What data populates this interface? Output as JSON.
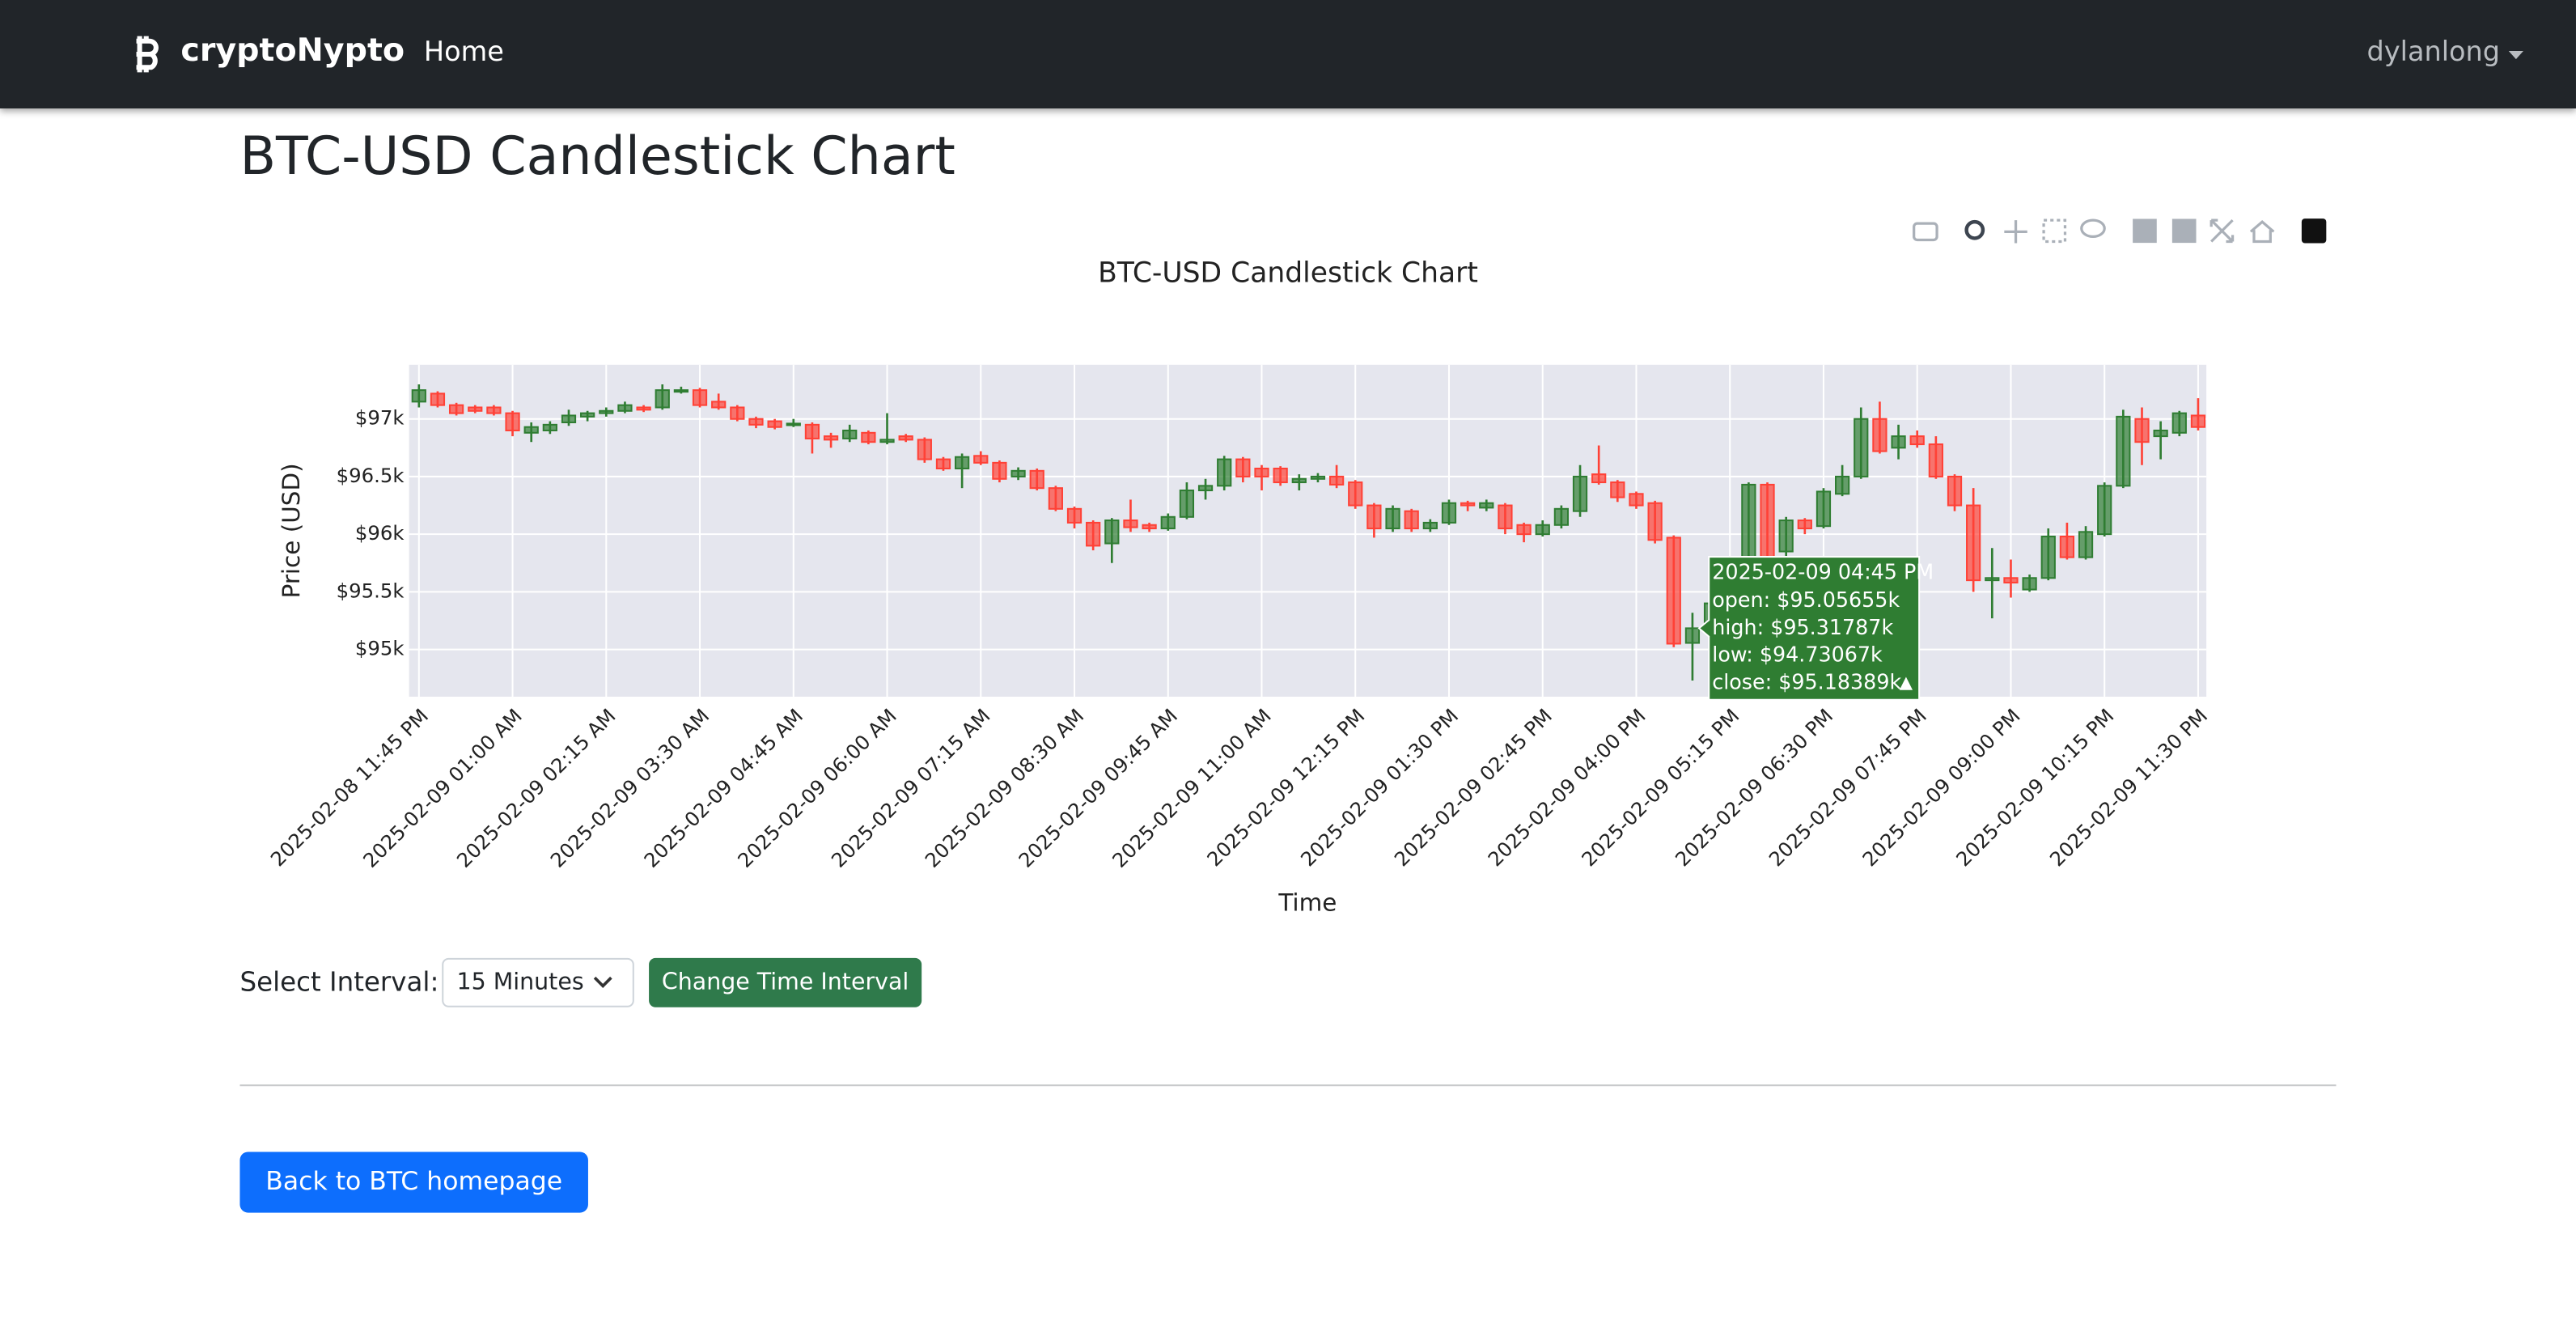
{
  "navbar": {
    "brand": "cryptoNypto",
    "links": [
      "Home"
    ],
    "user": "dylanlong"
  },
  "heading": "BTC-USD Candlestick Chart",
  "chart_data": {
    "type": "candlestick",
    "title": "BTC-USD Candlestick Chart",
    "xlabel": "Time",
    "ylabel": "Price (USD)",
    "x": [
      "2025-02-08 11:45 PM",
      "2025-02-09 12:00 AM",
      "2025-02-09 12:15 AM",
      "2025-02-09 12:30 AM",
      "2025-02-09 12:45 AM",
      "2025-02-09 01:00 AM",
      "2025-02-09 01:15 AM",
      "2025-02-09 01:30 AM",
      "2025-02-09 01:45 AM",
      "2025-02-09 02:00 AM",
      "2025-02-09 02:15 AM",
      "2025-02-09 02:30 AM",
      "2025-02-09 02:45 AM",
      "2025-02-09 03:00 AM",
      "2025-02-09 03:15 AM",
      "2025-02-09 03:30 AM",
      "2025-02-09 03:45 AM",
      "2025-02-09 04:00 AM",
      "2025-02-09 04:15 AM",
      "2025-02-09 04:30 AM",
      "2025-02-09 04:45 AM",
      "2025-02-09 05:00 AM",
      "2025-02-09 05:15 AM",
      "2025-02-09 05:30 AM",
      "2025-02-09 05:45 AM",
      "2025-02-09 06:00 AM",
      "2025-02-09 06:15 AM",
      "2025-02-09 06:30 AM",
      "2025-02-09 06:45 AM",
      "2025-02-09 07:00 AM",
      "2025-02-09 07:15 AM",
      "2025-02-09 07:30 AM",
      "2025-02-09 07:45 AM",
      "2025-02-09 08:00 AM",
      "2025-02-09 08:15 AM",
      "2025-02-09 08:30 AM",
      "2025-02-09 08:45 AM",
      "2025-02-09 09:00 AM",
      "2025-02-09 09:15 AM",
      "2025-02-09 09:30 AM",
      "2025-02-09 09:45 AM",
      "2025-02-09 10:00 AM",
      "2025-02-09 10:15 AM",
      "2025-02-09 10:30 AM",
      "2025-02-09 10:45 AM",
      "2025-02-09 11:00 AM",
      "2025-02-09 11:15 AM",
      "2025-02-09 11:30 AM",
      "2025-02-09 11:45 AM",
      "2025-02-09 12:00 PM",
      "2025-02-09 12:15 PM",
      "2025-02-09 12:30 PM",
      "2025-02-09 12:45 PM",
      "2025-02-09 01:00 PM",
      "2025-02-09 01:15 PM",
      "2025-02-09 01:30 PM",
      "2025-02-09 01:45 PM",
      "2025-02-09 02:00 PM",
      "2025-02-09 02:15 PM",
      "2025-02-09 02:30 PM",
      "2025-02-09 02:45 PM",
      "2025-02-09 03:00 PM",
      "2025-02-09 03:15 PM",
      "2025-02-09 03:30 PM",
      "2025-02-09 03:45 PM",
      "2025-02-09 04:00 PM",
      "2025-02-09 04:15 PM",
      "2025-02-09 04:30 PM",
      "2025-02-09 04:45 PM",
      "2025-02-09 05:00 PM",
      "2025-02-09 05:15 PM",
      "2025-02-09 05:30 PM",
      "2025-02-09 05:45 PM",
      "2025-02-09 06:00 PM",
      "2025-02-09 06:15 PM",
      "2025-02-09 06:30 PM",
      "2025-02-09 06:45 PM",
      "2025-02-09 07:00 PM",
      "2025-02-09 07:15 PM",
      "2025-02-09 07:30 PM",
      "2025-02-09 07:45 PM",
      "2025-02-09 08:00 PM",
      "2025-02-09 08:15 PM",
      "2025-02-09 08:30 PM",
      "2025-02-09 08:45 PM",
      "2025-02-09 09:00 PM",
      "2025-02-09 09:15 PM",
      "2025-02-09 09:30 PM",
      "2025-02-09 09:45 PM",
      "2025-02-09 10:00 PM",
      "2025-02-09 10:15 PM",
      "2025-02-09 10:30 PM",
      "2025-02-09 10:45 PM",
      "2025-02-09 11:00 PM",
      "2025-02-09 11:15 PM",
      "2025-02-09 11:30 PM"
    ],
    "open": [
      97150,
      97220,
      97120,
      97100,
      97100,
      97050,
      96880,
      96900,
      96970,
      97020,
      97050,
      97070,
      97100,
      97100,
      97240,
      97250,
      97150,
      97100,
      97000,
      96980,
      96950,
      96950,
      96850,
      96830,
      96880,
      96800,
      96850,
      96820,
      96650,
      96570,
      96680,
      96620,
      96500,
      96550,
      96400,
      96220,
      96100,
      95920,
      96120,
      96080,
      96050,
      96150,
      96380,
      96420,
      96650,
      96570,
      96570,
      96450,
      96480,
      96500,
      96450,
      96250,
      96050,
      96200,
      96050,
      96100,
      96270,
      96230,
      96250,
      96080,
      96000,
      96080,
      96200,
      96520,
      96450,
      96350,
      96270,
      95970,
      95056.55,
      95180,
      95400,
      95720,
      96430,
      95850,
      96120,
      96070,
      96350,
      96500,
      97000,
      96750,
      96850,
      96780,
      96500,
      96250,
      95600,
      95620,
      95520,
      95620,
      95980,
      95800,
      96000,
      96420,
      97000,
      96850,
      96880,
      97030
    ],
    "high": [
      97300,
      97240,
      97140,
      97120,
      97120,
      97070,
      96970,
      96980,
      97080,
      97070,
      97100,
      97150,
      97120,
      97300,
      97280,
      97270,
      97220,
      97120,
      97020,
      97000,
      97000,
      96970,
      96880,
      96950,
      96900,
      97050,
      96870,
      96840,
      96670,
      96700,
      96720,
      96640,
      96580,
      96570,
      96420,
      96240,
      96120,
      96140,
      96300,
      96100,
      96180,
      96450,
      96480,
      96680,
      96670,
      96600,
      96590,
      96520,
      96530,
      96600,
      96470,
      96270,
      96250,
      96220,
      96130,
      96300,
      96290,
      96300,
      96270,
      96100,
      96120,
      96250,
      96600,
      96770,
      96470,
      96370,
      96290,
      95990,
      95317.87,
      95450,
      95750,
      96450,
      96450,
      96150,
      96140,
      96400,
      96600,
      97100,
      97150,
      96950,
      96900,
      96850,
      96520,
      96400,
      95880,
      95780,
      95650,
      96050,
      96100,
      96070,
      96450,
      97080,
      97100,
      96980,
      97070,
      97180
    ],
    "low": [
      97100,
      97100,
      97030,
      97050,
      97030,
      96850,
      96800,
      96870,
      96940,
      96980,
      97020,
      97050,
      97060,
      97080,
      97220,
      97100,
      97080,
      96980,
      96920,
      96910,
      96930,
      96700,
      96750,
      96800,
      96780,
      96780,
      96800,
      96620,
      96550,
      96400,
      96600,
      96450,
      96470,
      96380,
      96200,
      96050,
      95860,
      95750,
      96020,
      96020,
      96030,
      96130,
      96300,
      96380,
      96450,
      96380,
      96420,
      96380,
      96450,
      96400,
      96220,
      95970,
      96020,
      96020,
      96020,
      96080,
      96200,
      96200,
      96000,
      95930,
      95980,
      96050,
      96150,
      96430,
      96280,
      96220,
      95920,
      95020,
      94730.67,
      95100,
      95350,
      95700,
      95750,
      95780,
      96000,
      96050,
      96330,
      96480,
      96700,
      96650,
      96750,
      96480,
      96200,
      95500,
      95270,
      95450,
      95500,
      95600,
      95780,
      95780,
      95980,
      96400,
      96600,
      96650,
      96850,
      96900
    ],
    "close": [
      97250,
      97120,
      97050,
      97070,
      97050,
      96900,
      96930,
      96950,
      97030,
      97050,
      97070,
      97120,
      97080,
      97250,
      97250,
      97120,
      97100,
      97000,
      96950,
      96930,
      96960,
      96830,
      96820,
      96900,
      96800,
      96820,
      96820,
      96650,
      96570,
      96670,
      96620,
      96480,
      96550,
      96400,
      96220,
      96100,
      95900,
      96120,
      96060,
      96050,
      96150,
      96380,
      96420,
      96650,
      96500,
      96500,
      96450,
      96480,
      96500,
      96430,
      96250,
      96050,
      96220,
      96050,
      96100,
      96270,
      96250,
      96270,
      96050,
      96000,
      96080,
      96220,
      96500,
      96450,
      96320,
      96250,
      95950,
      95050,
      95183.89,
      95400,
      95700,
      96430,
      95800,
      96120,
      96050,
      96370,
      96500,
      97000,
      96720,
      96850,
      96780,
      96500,
      96250,
      95600,
      95620,
      95580,
      95620,
      95980,
      95800,
      96020,
      96420,
      97020,
      96800,
      96900,
      97050,
      96930
    ],
    "increasing_color": "#2f7d32",
    "decreasing_color": "#ff4136",
    "ylim": [
      94590,
      97470
    ],
    "yticks": [
      {
        "value": 95000,
        "label": "$95k"
      },
      {
        "value": 95500,
        "label": "$95.5k"
      },
      {
        "value": 96000,
        "label": "$96k"
      },
      {
        "value": 96500,
        "label": "$96.5k"
      },
      {
        "value": 97000,
        "label": "$97k"
      }
    ],
    "xticks": [
      "2025-02-08 11:45 PM",
      "2025-02-09 01:00 AM",
      "2025-02-09 02:15 AM",
      "2025-02-09 03:30 AM",
      "2025-02-09 04:45 AM",
      "2025-02-09 06:00 AM",
      "2025-02-09 07:15 AM",
      "2025-02-09 08:30 AM",
      "2025-02-09 09:45 AM",
      "2025-02-09 11:00 AM",
      "2025-02-09 12:15 PM",
      "2025-02-09 01:30 PM",
      "2025-02-09 02:45 PM",
      "2025-02-09 04:00 PM",
      "2025-02-09 05:15 PM",
      "2025-02-09 06:30 PM",
      "2025-02-09 07:45 PM",
      "2025-02-09 09:00 PM",
      "2025-02-09 10:15 PM",
      "2025-02-09 11:30 PM"
    ],
    "grid": true,
    "tooltip": {
      "title": "2025-02-09 04:45 PM",
      "lines": [
        "open: $95.05655k",
        "high: $95.31787k",
        "low: $94.73067k",
        "close: $95.18389k"
      ]
    }
  },
  "form": {
    "label": "Select Interval:",
    "selected": "15 Minutes",
    "button": "Change Time Interval"
  },
  "back_button": "Back to BTC homepage"
}
